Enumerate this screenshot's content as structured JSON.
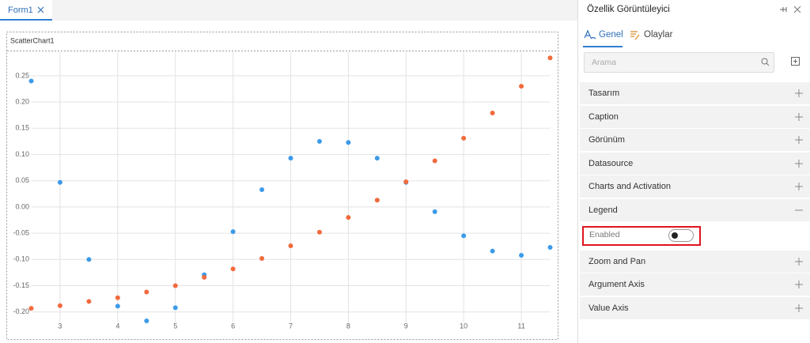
{
  "tabs": [
    "Form1"
  ],
  "chart_data": {
    "type": "scatter",
    "title": "ScatterChart1",
    "x": [
      2.5,
      3,
      3.5,
      4,
      4.5,
      5,
      5.5,
      6,
      6.5,
      7,
      7.5,
      8,
      8.5,
      9,
      9.5,
      10,
      10.5,
      11,
      11.5
    ],
    "series": [
      {
        "color": "#3d9be9",
        "values": [
          0.24,
          0.047,
          -0.1,
          -0.189,
          -0.217,
          -0.192,
          -0.129,
          -0.047,
          0.033,
          0.093,
          0.125,
          0.123,
          0.093,
          0.047,
          -0.009,
          -0.055,
          -0.084,
          -0.092,
          -0.077
        ]
      },
      {
        "color": "#f26a3d",
        "values": [
          -0.193,
          -0.188,
          -0.18,
          -0.173,
          -0.162,
          -0.15,
          -0.134,
          -0.118,
          -0.098,
          -0.074,
          -0.048,
          -0.02,
          0.013,
          0.048,
          0.088,
          0.131,
          0.179,
          0.23,
          0.284
        ]
      }
    ],
    "xlim": [
      2.5,
      11.5
    ],
    "xticks": [
      3,
      4,
      5,
      6,
      7,
      8,
      9,
      10,
      11
    ],
    "ylim": [
      -0.22,
      0.295
    ],
    "yticks": [
      0.25,
      {
        "value": 0.2,
        "label": "0.20"
      },
      0.15,
      {
        "value": 0.1,
        "label": "0.10"
      },
      0.05,
      {
        "value": 0,
        "label": "0.00"
      },
      -0.05,
      {
        "value": -0.1,
        "label": "-0.10"
      },
      -0.15,
      {
        "value": -0.2,
        "label": "-0.20"
      }
    ],
    "grid": true
  },
  "panel": {
    "title": "Özellik Görüntüleyici",
    "tabs": [
      "Genel",
      "Olaylar"
    ],
    "search_placeholder": "Arama",
    "sections": [
      {
        "label": "Tasarım"
      },
      {
        "label": "Caption"
      },
      {
        "label": "Görünüm"
      },
      {
        "label": "Datasource"
      },
      {
        "label": "Charts and Activation"
      },
      {
        "label": "Legend",
        "expanded": true,
        "properties": [
          {
            "label": "Enabled",
            "value": false
          }
        ]
      },
      {
        "label": "Zoom and Pan"
      },
      {
        "label": "Argument Axis"
      },
      {
        "label": "Value Axis"
      }
    ]
  }
}
